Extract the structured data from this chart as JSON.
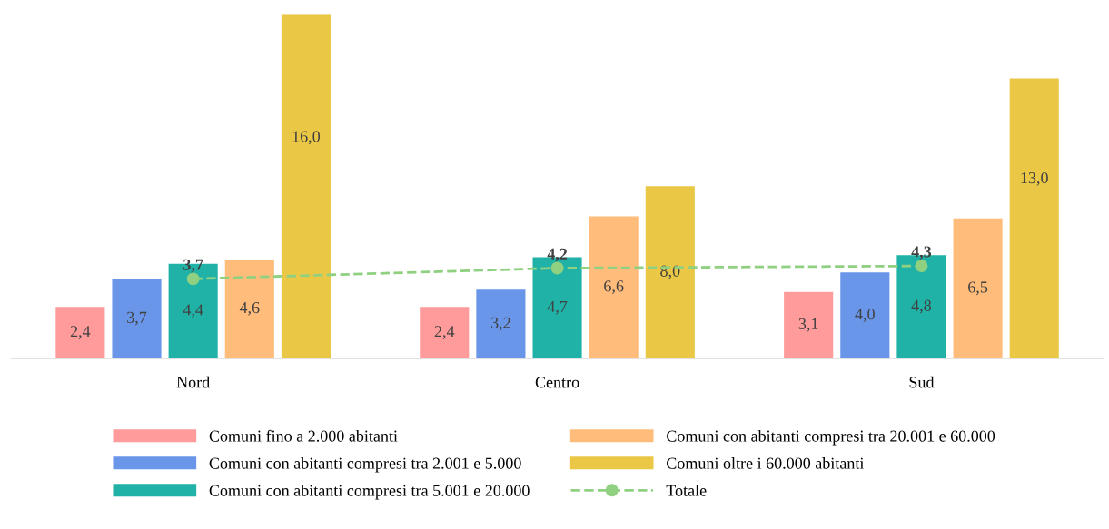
{
  "chart_data": {
    "type": "bar",
    "categories": [
      "Nord",
      "Centro",
      "Sud"
    ],
    "ylim": [
      0,
      16
    ],
    "tick_labels": "x",
    "legend": "bottom",
    "grid": false,
    "series": [
      {
        "name": "Comuni fino a 2.000 abitanti",
        "color": "#ff9b9b",
        "values": [
          2.4,
          2.4,
          3.1
        ],
        "value_labels": [
          "2,4",
          "2,4",
          "3,1"
        ]
      },
      {
        "name": "Comuni con abitanti compresi tra 2.001 e 5.000",
        "color": "#6a96ea",
        "values": [
          3.7,
          3.2,
          4.0
        ],
        "value_labels": [
          "3,7",
          "3,2",
          "4,0"
        ]
      },
      {
        "name": "Comuni con abitanti compresi tra 5.001 e 20.000",
        "color": "#20b2a6",
        "values": [
          4.4,
          4.7,
          4.8
        ],
        "value_labels": [
          "4,4",
          "4,7",
          "4,8"
        ]
      },
      {
        "name": "Comuni con abitanti compresi tra 20.001 e 60.000",
        "color": "#ffbc7a",
        "values": [
          4.6,
          6.6,
          6.5
        ],
        "value_labels": [
          "4,6",
          "6,6",
          "6,5"
        ]
      },
      {
        "name": "Comuni oltre i 60.000 abitanti",
        "color": "#eac846",
        "values": [
          16.0,
          8.0,
          13.0
        ],
        "value_labels": [
          "16,0",
          "8,0",
          "13,0"
        ]
      },
      {
        "name": "Totale",
        "type": "line",
        "color": "#8fd081",
        "marker": "circle",
        "line_style": "dashed",
        "values": [
          3.7,
          4.2,
          4.3
        ],
        "value_labels": [
          "3,7",
          "4,2",
          "4,3"
        ]
      }
    ]
  }
}
